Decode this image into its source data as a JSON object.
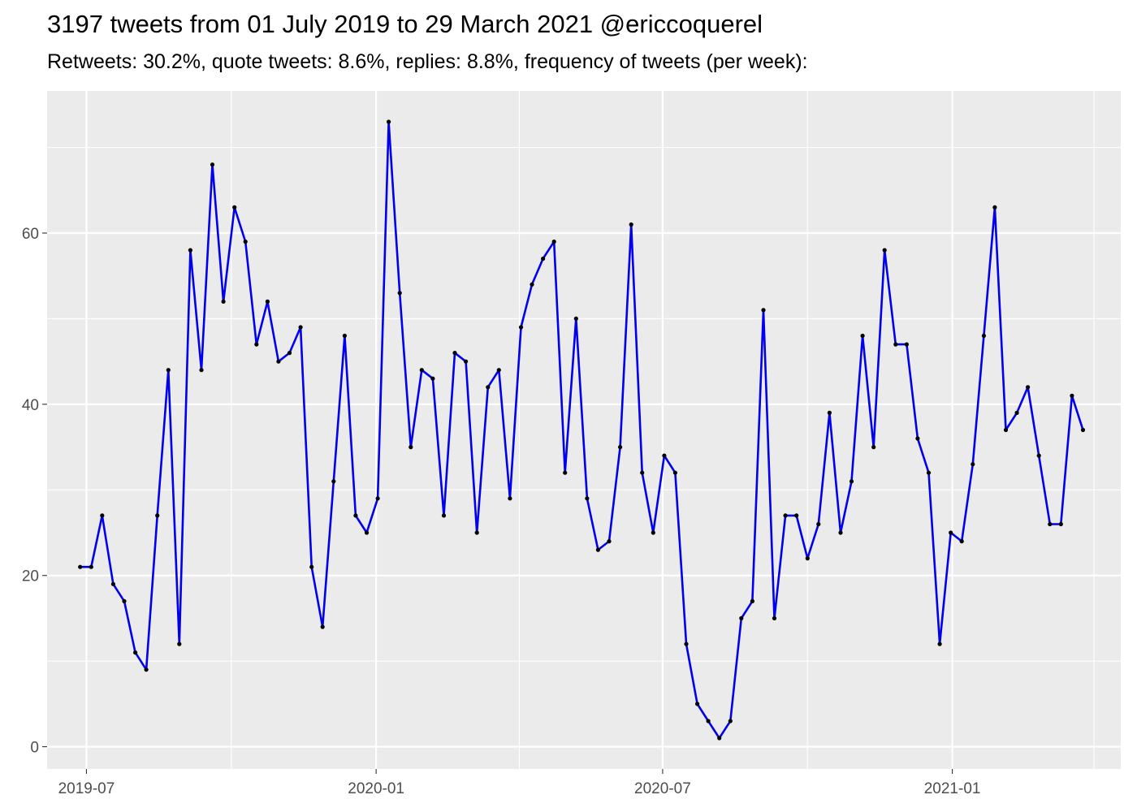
{
  "title": "3197 tweets from 01 July 2019 to 29 March 2021 @ericcoquerel",
  "subtitle": "Retweets: 30.2%, quote tweets: 8.6%, replies: 8.8%, frequency of tweets (per week):",
  "chart_data": {
    "type": "line",
    "title": "3197 tweets from 01 July 2019 to 29 March 2021 @ericcoquerel",
    "subtitle": "Retweets: 30.2%, quote tweets: 8.6%, replies: 8.8%, frequency of tweets (per week):",
    "xlabel": "",
    "ylabel": "",
    "x_start": "2019-06-27",
    "x_step_days": 7,
    "series": [
      {
        "values": [
          21,
          21,
          27,
          19,
          17,
          11,
          9,
          27,
          44,
          12,
          58,
          44,
          68,
          52,
          63,
          59,
          47,
          52,
          45,
          46,
          49,
          21,
          14,
          31,
          48,
          27,
          25,
          29,
          73,
          53,
          35,
          44,
          43,
          27,
          46,
          45,
          25,
          42,
          44,
          29,
          49,
          54,
          57,
          59,
          32,
          50,
          29,
          23,
          24,
          35,
          61,
          32,
          25,
          34,
          32,
          12,
          5,
          3,
          1,
          3,
          15,
          17,
          51,
          15,
          27,
          27,
          22,
          26,
          39,
          25,
          31,
          48,
          35,
          58,
          47,
          47,
          36,
          32,
          12,
          25,
          24,
          33,
          48,
          63,
          37,
          39,
          42,
          34,
          26,
          26,
          41,
          37
        ],
        "color": "#0000ee",
        "point_color": "#000000"
      }
    ],
    "x_ticks": [
      {
        "date": "2019-07-01",
        "label": "2019-07"
      },
      {
        "date": "2020-01-01",
        "label": "2020-01"
      },
      {
        "date": "2020-07-01",
        "label": "2020-07"
      },
      {
        "date": "2021-01-01",
        "label": "2021-01"
      }
    ],
    "x_minor_ticks": [
      "2019-10-01",
      "2020-04-01",
      "2020-10-01",
      "2021-04-01"
    ],
    "y_ticks": [
      0,
      20,
      40,
      60
    ],
    "y_minor_ticks": [
      10,
      30,
      50,
      70
    ],
    "xlim": [
      "2019-06-06",
      "2021-04-18"
    ],
    "ylim": [
      -2.6,
      76.6
    ],
    "grid": true,
    "panel_color": "#ebebeb",
    "grid_color": "#ffffff"
  }
}
